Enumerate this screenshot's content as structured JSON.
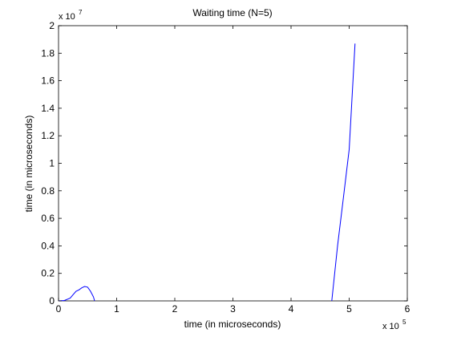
{
  "chart_data": {
    "type": "line",
    "title": "Waiting time (N=5)",
    "xlabel": "time (in microseconds)",
    "ylabel": "time (in microseconds)",
    "xlim": [
      0,
      600000
    ],
    "ylim": [
      0,
      20000000
    ],
    "x_ticks": [
      0,
      1,
      2,
      3,
      4,
      5,
      6
    ],
    "y_ticks": [
      0,
      0.2,
      0.4,
      0.6,
      0.8,
      1,
      1.2,
      1.4,
      1.6,
      1.8,
      2
    ],
    "x_multiplier": {
      "base": "x 10",
      "exponent": "5"
    },
    "y_multiplier": {
      "base": "x 10",
      "exponent": "7"
    },
    "grid": false,
    "line_color": "#0000ff",
    "series": [
      {
        "segments": [
          {
            "x": [
              0,
              10000,
              20000,
              25000,
              30000,
              35000,
              40000,
              45000,
              50000,
              55000,
              60000,
              62000
            ],
            "y": [
              0,
              30000,
              200000,
              450000,
              700000,
              800000,
              950000,
              1050000,
              1000000,
              700000,
              300000,
              0
            ]
          },
          {
            "x": [
              470000,
              480000,
              490000,
              500000,
              510000
            ],
            "y": [
              0,
              4000000,
              7500000,
              11000000,
              18700000
            ]
          }
        ]
      }
    ]
  }
}
